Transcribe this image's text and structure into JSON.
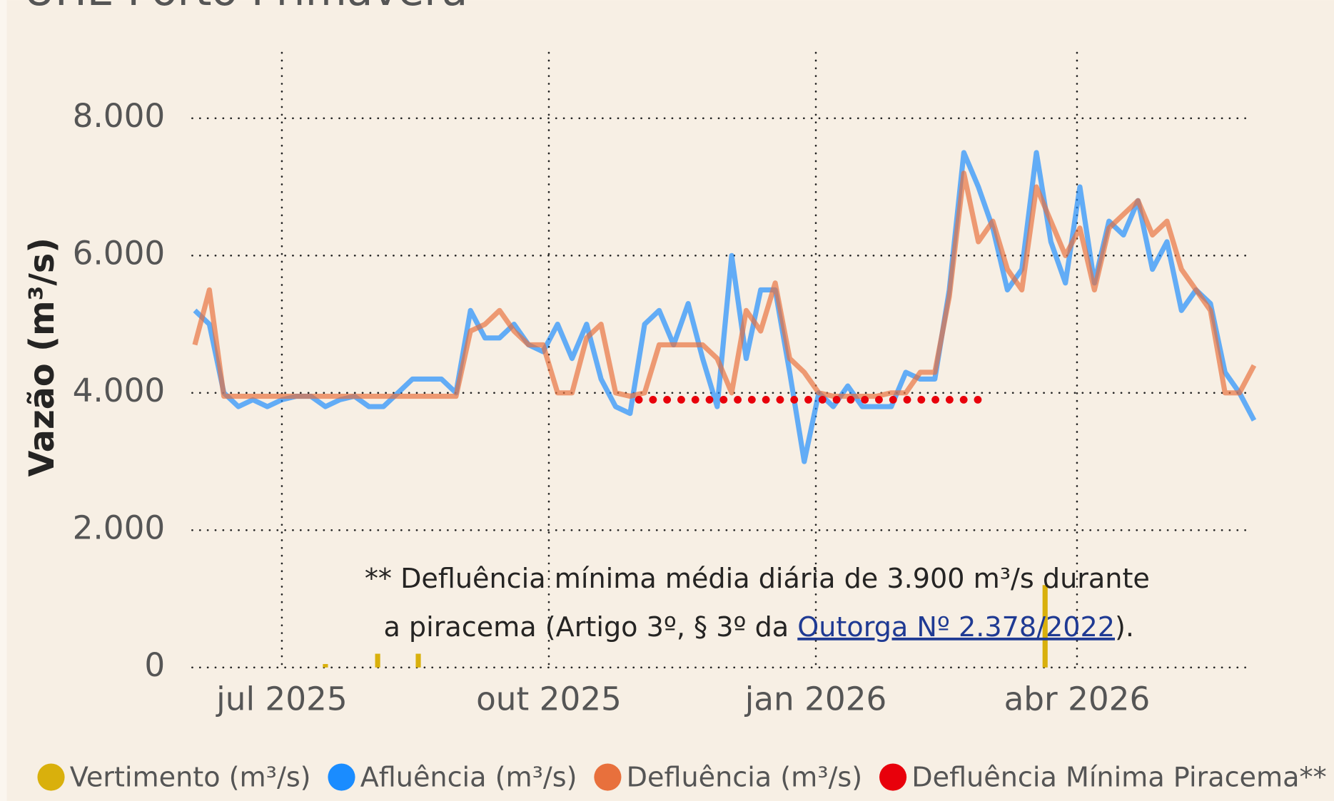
{
  "chart_data": {
    "type": "line",
    "title": "UHE Porto Primavera",
    "y_label": "Vazão (m³/s)",
    "xlim": [
      "2025-06-01",
      "2026-06-01"
    ],
    "xticks": [
      {
        "value": "2025-07-01",
        "label": "jul 2025"
      },
      {
        "value": "2025-10-01",
        "label": "out 2025"
      },
      {
        "value": "2026-01-01",
        "label": "jan 2026"
      },
      {
        "value": "2026-04-01",
        "label": "abr 2026"
      }
    ],
    "ylim": [
      0,
      8000
    ],
    "yticks": [
      0,
      {
        "value": 2000,
        "label": "2.000"
      },
      {
        "value": 4000,
        "label": "4.000"
      },
      {
        "value": 6000,
        "label": "6.000"
      },
      {
        "value": 8000,
        "label": "8.000"
      }
    ],
    "grid": true,
    "legend": "bottom",
    "x": [
      "2025-06-01",
      "2025-06-06",
      "2025-06-11",
      "2025-06-16",
      "2025-06-21",
      "2025-06-26",
      "2025-07-01",
      "2025-07-06",
      "2025-07-11",
      "2025-07-16",
      "2025-07-21",
      "2025-07-26",
      "2025-07-31",
      "2025-08-05",
      "2025-08-10",
      "2025-08-15",
      "2025-08-20",
      "2025-08-25",
      "2025-08-30",
      "2025-09-04",
      "2025-09-09",
      "2025-09-14",
      "2025-09-19",
      "2025-09-24",
      "2025-09-29",
      "2025-10-04",
      "2025-10-09",
      "2025-10-14",
      "2025-10-19",
      "2025-10-24",
      "2025-10-29",
      "2025-11-03",
      "2025-11-08",
      "2025-11-13",
      "2025-11-18",
      "2025-11-23",
      "2025-11-28",
      "2025-12-03",
      "2025-12-08",
      "2025-12-13",
      "2025-12-18",
      "2025-12-23",
      "2025-12-28",
      "2026-01-02",
      "2026-01-07",
      "2026-01-12",
      "2026-01-17",
      "2026-01-22",
      "2026-01-27",
      "2026-02-01",
      "2026-02-06",
      "2026-02-11",
      "2026-02-16",
      "2026-02-21",
      "2026-02-26",
      "2026-03-03",
      "2026-03-08",
      "2026-03-13",
      "2026-03-18",
      "2026-03-23",
      "2026-03-28",
      "2026-04-02",
      "2026-04-07",
      "2026-04-12",
      "2026-04-17",
      "2026-04-22",
      "2026-04-27",
      "2026-05-02",
      "2026-05-07",
      "2026-05-12",
      "2026-05-17",
      "2026-05-22",
      "2026-05-27",
      "2026-06-01"
    ],
    "series": [
      {
        "name": "Vertimento (m³/s)",
        "color": "#d9b00c",
        "style": "bar",
        "x": [
          "2025-07-16",
          "2025-08-03",
          "2025-08-17",
          "2026-03-21"
        ],
        "values": [
          50,
          200,
          200,
          1200
        ]
      },
      {
        "name": "Afluência (m³/s)",
        "color": "#1a8cff",
        "style": "line",
        "values": [
          5200,
          5000,
          4000,
          3800,
          3900,
          3800,
          3900,
          3950,
          3950,
          3800,
          3900,
          3950,
          3800,
          3800,
          4000,
          4200,
          4200,
          4200,
          4000,
          5200,
          4800,
          4800,
          5000,
          4700,
          4600,
          5000,
          4500,
          5000,
          4200,
          3800,
          3700,
          5000,
          5200,
          4700,
          5300,
          4500,
          3800,
          6000,
          4500,
          5500,
          5500,
          4300,
          3000,
          4000,
          3800,
          4100,
          3800,
          3800,
          3800,
          4300,
          4200,
          4200,
          5500,
          7500,
          7000,
          6400,
          5500,
          5800,
          7500,
          6200,
          5600,
          7000,
          5600,
          6500,
          6300,
          6800,
          5800,
          6200,
          5200,
          5500,
          5300,
          4300,
          4000,
          3600
        ]
      },
      {
        "name": "Defluência (m³/s)",
        "color": "#e8703c",
        "style": "line",
        "values": [
          4700,
          5500,
          3950,
          3950,
          3950,
          3950,
          3950,
          3950,
          3950,
          3950,
          3950,
          3950,
          3950,
          3950,
          3950,
          3950,
          3950,
          3950,
          3950,
          4900,
          5000,
          5200,
          4900,
          4700,
          4700,
          4000,
          4000,
          4800,
          5000,
          4000,
          3950,
          4000,
          4700,
          4700,
          4700,
          4700,
          4500,
          4000,
          5200,
          4900,
          5600,
          4500,
          4300,
          4000,
          3950,
          3950,
          3950,
          3950,
          4000,
          4000,
          4300,
          4300,
          5400,
          7200,
          6200,
          6500,
          5800,
          5500,
          7000,
          6500,
          6000,
          6400,
          5500,
          6400,
          6600,
          6800,
          6300,
          6500,
          5800,
          5500,
          5200,
          4000,
          4000,
          4400
        ]
      },
      {
        "name": "Defluência Mínima Piracema**",
        "color": "#e8000b",
        "style": "dots",
        "x": [
          "2025-11-01",
          "2026-02-28"
        ],
        "values": [
          3900,
          3900
        ]
      }
    ],
    "annotation": {
      "line1": "**  Defluência mínima média diária de 3.900 m³/s durante",
      "line2_before": "a piracema (Artigo 3º, § 3º da ",
      "link": "Outorga Nº 2.378/2022",
      "line2_after": ")."
    }
  }
}
